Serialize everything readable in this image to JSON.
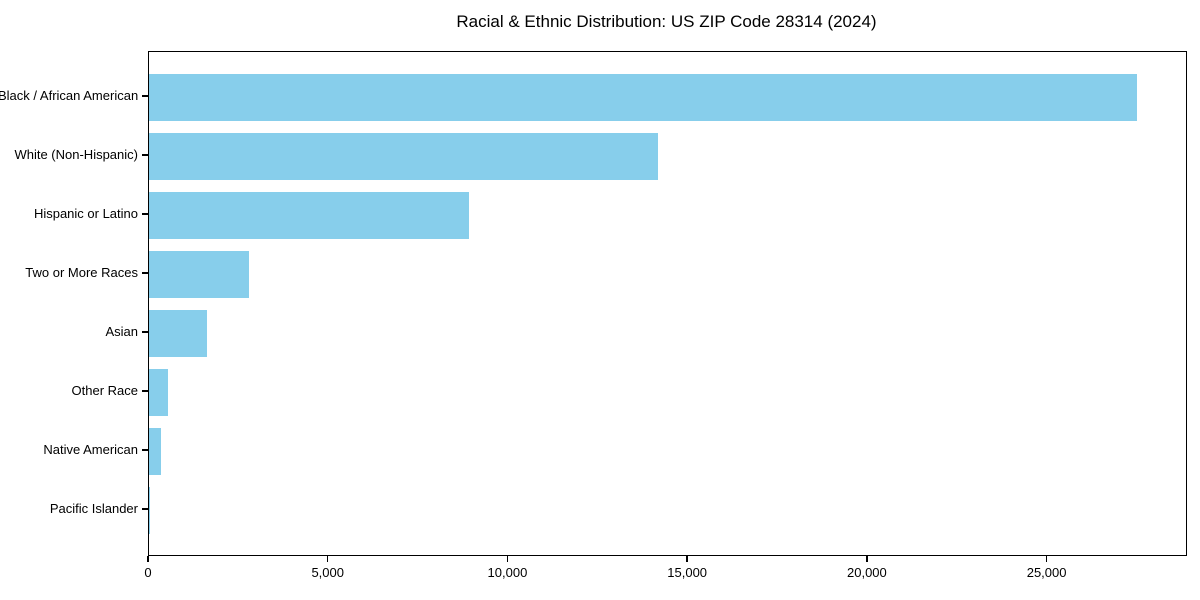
{
  "chart_data": {
    "type": "bar",
    "orientation": "horizontal",
    "title": "Racial & Ethnic Distribution: US ZIP Code 28314 (2024)",
    "categories": [
      "Black / African American",
      "White (Non-Hispanic)",
      "Hispanic or Latino",
      "Two or More Races",
      "Asian",
      "Other Race",
      "Native American",
      "Pacific Islander"
    ],
    "values": [
      27500,
      14150,
      8900,
      2780,
      1620,
      520,
      330,
      40
    ],
    "xlabel": "",
    "ylabel": "",
    "xlim": [
      0,
      28850
    ],
    "x_ticks": [
      0,
      5000,
      10000,
      15000,
      20000,
      25000
    ],
    "x_tick_labels": [
      "0",
      "5,000",
      "10,000",
      "15,000",
      "20,000",
      "25,000"
    ],
    "bar_color": "#87CEEB",
    "grid": false,
    "legend": "none",
    "frame": "box"
  }
}
